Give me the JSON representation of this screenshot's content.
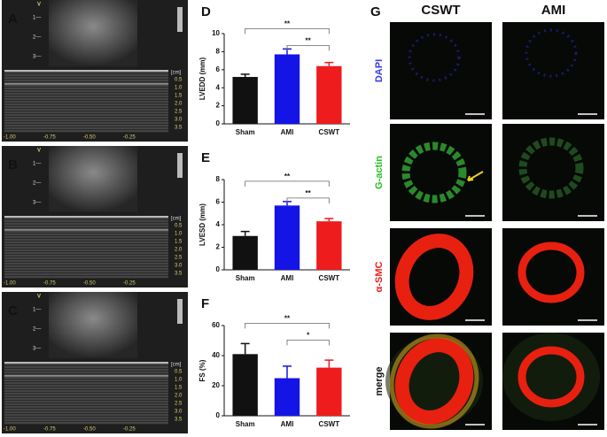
{
  "echo": {
    "panels": [
      "A",
      "B",
      "C"
    ],
    "marker": "V",
    "sector_depths": [
      "1—",
      "2—",
      "3—"
    ],
    "unit": "[cm]",
    "depth_labels": [
      "0.5",
      "1.0",
      "1.5",
      "2.0",
      "2.5",
      "3.0",
      "3.5"
    ],
    "time_labels": [
      "-1.00",
      "-0.75",
      "-0.50",
      "-0.25"
    ]
  },
  "chart_data": [
    {
      "type": "bar",
      "label": "D",
      "ylabel": "LVEDD (mm)",
      "categories": [
        "Sham",
        "AMI",
        "CSWT"
      ],
      "values": [
        5.2,
        7.7,
        6.4
      ],
      "errors": [
        0.3,
        0.6,
        0.4
      ],
      "colors": [
        "#111111",
        "#1414e6",
        "#ee1c1c"
      ],
      "ylim": [
        0,
        10
      ],
      "yticks": [
        0,
        2,
        4,
        6,
        8,
        10
      ],
      "annotations": [
        {
          "text": "**",
          "categories": [
            "Sham",
            "CSWT"
          ]
        },
        {
          "text": "**",
          "categories": [
            "AMI",
            "CSWT"
          ]
        }
      ]
    },
    {
      "type": "bar",
      "label": "E",
      "ylabel": "LVESD (mm)",
      "categories": [
        "Sham",
        "AMI",
        "CSWT"
      ],
      "values": [
        3.0,
        5.7,
        4.3
      ],
      "errors": [
        0.4,
        0.35,
        0.25
      ],
      "colors": [
        "#111111",
        "#1414e6",
        "#ee1c1c"
      ],
      "ylim": [
        0,
        8
      ],
      "yticks": [
        0,
        2,
        4,
        6,
        8
      ],
      "annotations": [
        {
          "text": "**",
          "categories": [
            "Sham",
            "CSWT"
          ]
        },
        {
          "text": "**",
          "categories": [
            "AMI",
            "CSWT"
          ]
        }
      ]
    },
    {
      "type": "bar",
      "label": "F",
      "ylabel": "FS (%)",
      "categories": [
        "Sham",
        "AMI",
        "CSWT"
      ],
      "values": [
        41,
        25,
        32
      ],
      "errors": [
        7,
        8,
        5
      ],
      "colors": [
        "#111111",
        "#1414e6",
        "#ee1c1c"
      ],
      "ylim": [
        0,
        60
      ],
      "yticks": [
        0,
        20,
        40,
        60
      ],
      "annotations": [
        {
          "text": "**",
          "categories": [
            "Sham",
            "CSWT"
          ]
        },
        {
          "text": "*",
          "categories": [
            "AMI",
            "CSWT"
          ]
        }
      ]
    }
  ],
  "micro": {
    "label": "G",
    "columns": [
      "CSWT",
      "AMI"
    ],
    "rows": [
      "DAPI",
      "G-actin",
      "α-SMC",
      "merge"
    ],
    "row_colors": [
      "#3a3ae6",
      "#22c022",
      "#ee1c1c",
      "#111111"
    ]
  }
}
